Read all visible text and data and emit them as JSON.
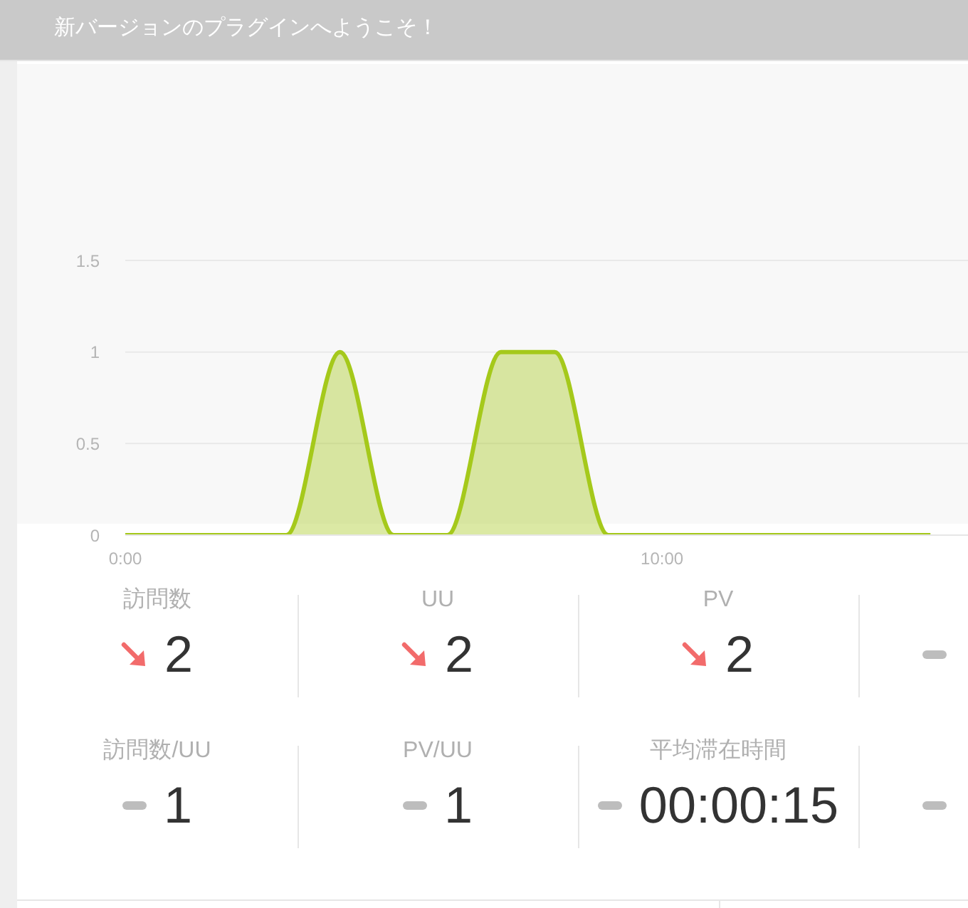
{
  "chart_data": [
    {
      "type": "area",
      "x": [
        0,
        1,
        2,
        3,
        4,
        5,
        6,
        7,
        8,
        9,
        10,
        11,
        12,
        13,
        14,
        15
      ],
      "values": [
        0,
        0,
        0,
        0,
        1,
        0,
        0,
        1,
        1,
        0,
        0,
        0,
        0,
        0,
        0,
        0
      ],
      "color": "#a5c91b",
      "xlim": [
        0,
        15.7
      ],
      "xticks": [
        {
          "value": 0,
          "label": "0:00"
        },
        {
          "value": 10,
          "label": "10:00"
        }
      ],
      "ylim": [
        0,
        1.5
      ],
      "yticks": [
        0,
        0.5,
        1,
        1.5
      ],
      "grid": "y",
      "annotations": [
        "新バージョンのプラグインへようこそ！"
      ]
    },
    {
      "type": "other",
      "annotations": [
        "訪問数",
        "2",
        "UU",
        "2",
        "PV",
        "2",
        "訪問数/UU",
        "1",
        "PV/UU",
        "1",
        "平均滞在時間",
        "00:00:15"
      ]
    }
  ]
}
